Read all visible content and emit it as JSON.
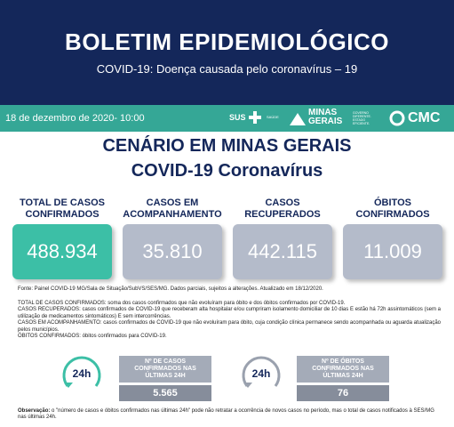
{
  "header": {
    "title": "BOLETIM EPIDEMIOLÓGICO",
    "subtitle": "COVID-19: Doença causada pelo coronavírus – 19"
  },
  "bar": {
    "date": "18 de dezembro de 2020- 10:00",
    "logos": [
      "SUS",
      "SAÚDE",
      "MINAS",
      "GERAIS",
      "GOVERNO DIFERENTE. ESTADO EFICIENTE.",
      "CMC"
    ]
  },
  "section": {
    "title": "CENÁRIO EM MINAS GERAIS",
    "subtitle": "COVID-19 Coronavírus"
  },
  "cards": [
    {
      "label": "TOTAL DE CASOS CONFIRMADOS",
      "value": "488.934"
    },
    {
      "label": "CASOS EM ACOMPANHAMENTO",
      "value": "35.810"
    },
    {
      "label": "CASOS RECUPERADOS",
      "value": "442.115"
    },
    {
      "label": "ÓBITOS CONFIRMADOS",
      "value": "11.009"
    }
  ],
  "source": "Fonte: Painel COVID-19 MG/Sala de Situação/SubVS/SES/MG. Dados parciais, sujeitos a alterações. Atualizado em 18/12/2020.",
  "definitions": [
    {
      "term": "TOTAL DE CASOS CONFIRMADOS:",
      "text": "soma dos casos confirmados que não evoluíram para óbito e dos óbitos confirmados por COVID-19."
    },
    {
      "term": "CASOS RECUPERADOS:",
      "text": "casos confirmados de COVID-19 que receberam alta hospitalar e/ou cumpriram isolamento domiciliar de 10 dias E estão há 72h assintomáticos (sem a utilização de medicamentos sintomáticos) E sem intercorrências."
    },
    {
      "term": "CASOS EM ACOMPANHAMENTO:",
      "text": "casos confirmados de COVID-19 que não evoluíram para óbito, cuja condição clínica permanece sendo acompanhada ou aguarda atualização pelos municípios."
    },
    {
      "term": "ÓBITOS CONFIRMADOS:",
      "text": "óbitos confirmados para COVID-19."
    }
  ],
  "last24h": [
    {
      "icon": "24h",
      "label": "Nº DE CASOS CONFIRMADOS NAS ÚLTIMAS 24H",
      "value": "5.565"
    },
    {
      "icon": "24h",
      "label": "Nº DE ÓBITOS CONFIRMADOS NAS ÚLTIMAS 24H",
      "value": "76"
    }
  ],
  "note": {
    "term": "Observação:",
    "text": "o \"número de casos e óbitos confirmados nas últimas 24h\" pode não retratar a ocorrência de novos casos no período, mas o total de casos notificados à SES/MG nas últimas 24h."
  }
}
